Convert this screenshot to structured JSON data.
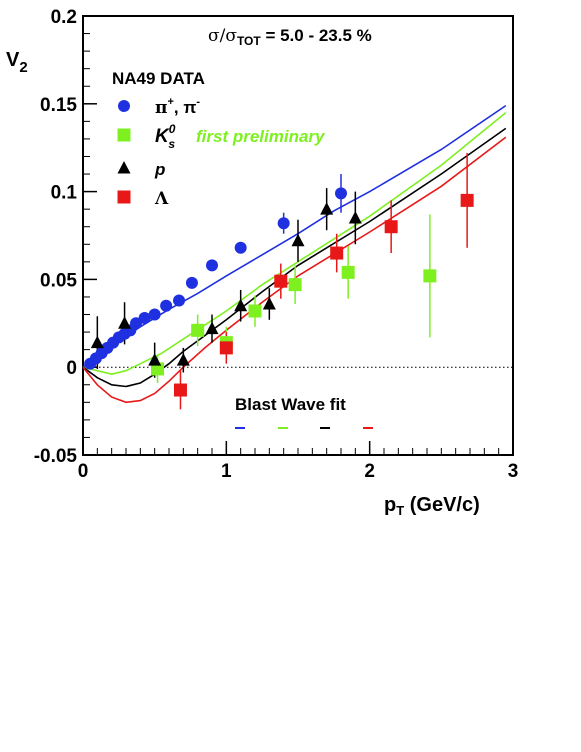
{
  "chart_data": {
    "type": "scatter",
    "title": "",
    "xlabel": "p_T (GeV/c)",
    "xlabel_main": "p",
    "xlabel_sub": "T",
    "xlabel_unit": " (GeV/c)",
    "ylabel": "V_2",
    "ylabel_main": "V",
    "ylabel_sub": "2",
    "xlim": [
      0,
      3
    ],
    "ylim": [
      -0.05,
      0.2
    ],
    "x_ticks": [
      0,
      1,
      2,
      3
    ],
    "x_tick_labels": [
      "0",
      "1",
      "2",
      "3"
    ],
    "y_ticks": [
      -0.05,
      0,
      0.05,
      0.1,
      0.15,
      0.2
    ],
    "y_tick_labels": [
      "-0.05",
      "0",
      "0.05",
      "0.1",
      "0.15",
      "0.2"
    ],
    "grid": false,
    "zero_line": "dotted",
    "centrality": {
      "sigma": "σ/σ",
      "sub": "TOT",
      "value": " = 5.0 - 23.5 %"
    },
    "legend": {
      "header": "NA49 DATA",
      "placement": "top-left",
      "items": [
        {
          "series": "pion",
          "label_main": "π",
          "sup1": "+",
          "mid": ", π",
          "sup2": "-"
        },
        {
          "series": "kaon",
          "label_main": "K",
          "sup1": "0",
          "sub1": "s",
          "note": "first preliminary"
        },
        {
          "series": "proton",
          "label_main": "p"
        },
        {
          "series": "lambda",
          "label_main": "Λ"
        }
      ]
    },
    "fit_legend": {
      "label": "Blast Wave fit",
      "placement": "bottom-center"
    },
    "series": [
      {
        "key": "pion",
        "marker": "circle",
        "color": "#1f30e0",
        "points": [
          {
            "x": 0.05,
            "y": 0.002,
            "err": 0.002
          },
          {
            "x": 0.09,
            "y": 0.005,
            "err": 0.002
          },
          {
            "x": 0.13,
            "y": 0.008,
            "err": 0.002
          },
          {
            "x": 0.17,
            "y": 0.011,
            "err": 0.002
          },
          {
            "x": 0.21,
            "y": 0.014,
            "err": 0.002
          },
          {
            "x": 0.25,
            "y": 0.017,
            "err": 0.002
          },
          {
            "x": 0.29,
            "y": 0.019,
            "err": 0.002
          },
          {
            "x": 0.33,
            "y": 0.021,
            "err": 0.002
          },
          {
            "x": 0.37,
            "y": 0.025,
            "err": 0.002
          },
          {
            "x": 0.43,
            "y": 0.028,
            "err": 0.002
          },
          {
            "x": 0.5,
            "y": 0.03,
            "err": 0.002
          },
          {
            "x": 0.58,
            "y": 0.035,
            "err": 0.002
          },
          {
            "x": 0.67,
            "y": 0.038,
            "err": 0.002
          },
          {
            "x": 0.76,
            "y": 0.048,
            "err": 0.002
          },
          {
            "x": 0.9,
            "y": 0.058,
            "err": 0.002
          },
          {
            "x": 1.1,
            "y": 0.068,
            "err": 0.002
          },
          {
            "x": 1.4,
            "y": 0.082,
            "err": 0.006
          },
          {
            "x": 1.8,
            "y": 0.099,
            "err": 0.011
          }
        ]
      },
      {
        "key": "kaon",
        "marker": "square",
        "color": "#7ef020",
        "points": [
          {
            "x": 0.52,
            "y": -0.001,
            "err": 0.008
          },
          {
            "x": 0.8,
            "y": 0.021,
            "err": 0.009
          },
          {
            "x": 1.0,
            "y": 0.014,
            "err": 0.009
          },
          {
            "x": 1.2,
            "y": 0.032,
            "err": 0.009
          },
          {
            "x": 1.48,
            "y": 0.047,
            "err": 0.011
          },
          {
            "x": 1.85,
            "y": 0.054,
            "err": 0.015
          },
          {
            "x": 2.42,
            "y": 0.052,
            "err": 0.035
          }
        ]
      },
      {
        "key": "proton",
        "marker": "triangle",
        "color": "#000000",
        "points": [
          {
            "x": 0.1,
            "y": 0.014,
            "err": 0.015
          },
          {
            "x": 0.29,
            "y": 0.025,
            "err": 0.012
          },
          {
            "x": 0.5,
            "y": 0.004,
            "err": 0.01
          },
          {
            "x": 0.7,
            "y": 0.004,
            "err": 0.007
          },
          {
            "x": 0.9,
            "y": 0.022,
            "err": 0.008
          },
          {
            "x": 1.1,
            "y": 0.035,
            "err": 0.009
          },
          {
            "x": 1.3,
            "y": 0.036,
            "err": 0.009
          },
          {
            "x": 1.5,
            "y": 0.072,
            "err": 0.012
          },
          {
            "x": 1.7,
            "y": 0.09,
            "err": 0.012
          },
          {
            "x": 1.9,
            "y": 0.085,
            "err": 0.015
          }
        ]
      },
      {
        "key": "lambda",
        "marker": "square",
        "color": "#e81818",
        "points": [
          {
            "x": 0.68,
            "y": -0.013,
            "err": 0.011
          },
          {
            "x": 1.0,
            "y": 0.011,
            "err": 0.009
          },
          {
            "x": 1.38,
            "y": 0.049,
            "err": 0.01
          },
          {
            "x": 1.77,
            "y": 0.065,
            "err": 0.011
          },
          {
            "x": 2.15,
            "y": 0.08,
            "err": 0.015
          },
          {
            "x": 2.68,
            "y": 0.095,
            "err": 0.027
          }
        ]
      }
    ],
    "fits": [
      {
        "key": "pion",
        "color": "#1f30e0",
        "x": [
          0.0,
          0.1,
          0.2,
          0.4,
          0.6,
          0.8,
          1.0,
          1.25,
          1.5,
          1.75,
          2.0,
          2.5,
          2.95
        ],
        "y": [
          0.0,
          0.006,
          0.012,
          0.023,
          0.033,
          0.042,
          0.052,
          0.064,
          0.076,
          0.089,
          0.1,
          0.124,
          0.149
        ]
      },
      {
        "key": "kaon",
        "color": "#7ef020",
        "x": [
          0.0,
          0.1,
          0.2,
          0.3,
          0.4,
          0.55,
          0.7,
          0.85,
          1.0,
          1.25,
          1.5,
          2.0,
          2.5,
          2.95
        ],
        "y": [
          0.0,
          -0.002,
          -0.004,
          -0.002,
          0.002,
          0.008,
          0.016,
          0.024,
          0.032,
          0.047,
          0.06,
          0.086,
          0.115,
          0.145
        ]
      },
      {
        "key": "proton",
        "color": "#000000",
        "x": [
          0.0,
          0.1,
          0.2,
          0.3,
          0.4,
          0.5,
          0.6,
          0.7,
          0.85,
          1.0,
          1.25,
          1.5,
          2.0,
          2.5,
          2.95
        ],
        "y": [
          0.0,
          -0.006,
          -0.01,
          -0.011,
          -0.009,
          -0.004,
          0.002,
          0.009,
          0.018,
          0.027,
          0.043,
          0.058,
          0.083,
          0.11,
          0.136
        ]
      },
      {
        "key": "lambda",
        "color": "#e81818",
        "x": [
          0.0,
          0.1,
          0.2,
          0.3,
          0.4,
          0.5,
          0.6,
          0.7,
          0.85,
          1.0,
          1.25,
          1.5,
          2.0,
          2.5,
          2.95
        ],
        "y": [
          0.0,
          -0.01,
          -0.017,
          -0.02,
          -0.019,
          -0.015,
          -0.008,
          0.0,
          0.011,
          0.021,
          0.037,
          0.052,
          0.077,
          0.103,
          0.131
        ]
      }
    ]
  }
}
